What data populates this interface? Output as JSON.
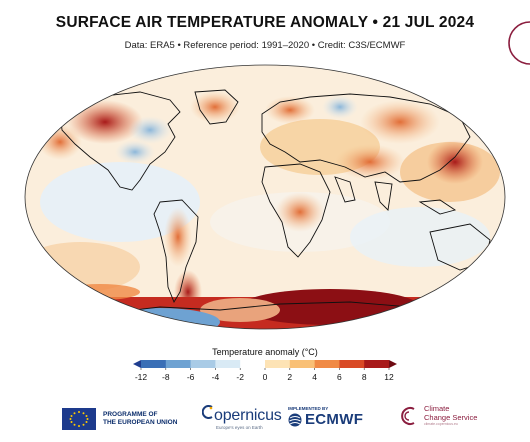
{
  "title": "SURFACE AIR TEMPERATURE ANOMALY • 21 JUL 2024",
  "subtitle": "Data: ERA5 • Reference period: 1991–2020 • Credit: C3S/ECMWF",
  "legend": {
    "title": "Temperature anomaly (°C)",
    "ticks": [
      "-12",
      "-8",
      "-6",
      "-4",
      "-2",
      "0",
      "2",
      "4",
      "6",
      "8",
      "12"
    ],
    "colors": [
      "#1f3d8f",
      "#3a6fb6",
      "#6ea2d2",
      "#a9cbe6",
      "#d9eaf5",
      "#ffffff",
      "#fde3b5",
      "#f9c076",
      "#f08a45",
      "#d94a26",
      "#a81a1a",
      "#6e0a12"
    ]
  },
  "footer": {
    "eu_line1": "PROGRAMME OF",
    "eu_line2": "THE EUROPEAN UNION",
    "copernicus": "opernicus",
    "copernicus_tag": "Europe's eyes on Earth",
    "implemented_by": "IMPLEMENTED BY",
    "ecmwf": "ECMWF",
    "c3s_line1": "Climate",
    "c3s_line2": "Change Service",
    "c3s_sub": "climate.copernicus.eu"
  },
  "icons": {
    "eu_flag": "eu-flag-icon",
    "copernicus_logo": "copernicus-logo-icon",
    "ecmwf_logo": "ecmwf-logo-icon",
    "c3s_logo": "c3s-logo-icon"
  }
}
